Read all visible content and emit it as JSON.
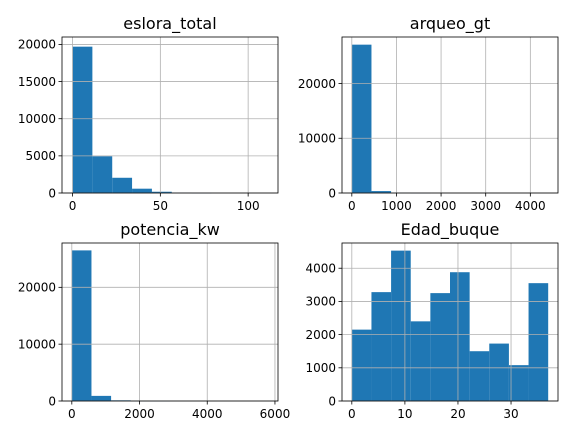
{
  "chart_data": [
    {
      "type": "bar",
      "subtype": "histogram",
      "title": "eslora_total",
      "xlim": [
        -6,
        117
      ],
      "ylim": [
        0,
        21000
      ],
      "xticks": [
        0,
        50,
        100
      ],
      "yticks": [
        0,
        5000,
        10000,
        15000,
        20000
      ],
      "grid": true,
      "bins": [
        {
          "x0": 0.0,
          "x1": 11.3,
          "count": 19700
        },
        {
          "x0": 11.3,
          "x1": 22.6,
          "count": 4950
        },
        {
          "x0": 22.6,
          "x1": 33.9,
          "count": 2050
        },
        {
          "x0": 33.9,
          "x1": 45.2,
          "count": 580
        },
        {
          "x0": 45.2,
          "x1": 56.5,
          "count": 170
        },
        {
          "x0": 56.5,
          "x1": 67.8,
          "count": 50
        },
        {
          "x0": 67.8,
          "x1": 79.1,
          "count": 15
        },
        {
          "x0": 79.1,
          "x1": 90.4,
          "count": 6
        },
        {
          "x0": 90.4,
          "x1": 101.7,
          "count": 3
        },
        {
          "x0": 101.7,
          "x1": 113.0,
          "count": 2
        }
      ]
    },
    {
      "type": "bar",
      "subtype": "histogram",
      "title": "arqueo_gt",
      "xlim": [
        -220,
        4620
      ],
      "ylim": [
        0,
        28500
      ],
      "xticks": [
        0,
        1000,
        2000,
        3000,
        4000
      ],
      "yticks": [
        0,
        10000,
        20000
      ],
      "grid": true,
      "bins": [
        {
          "x0": 0,
          "x1": 440,
          "count": 27100
        },
        {
          "x0": 440,
          "x1": 880,
          "count": 350
        },
        {
          "x0": 880,
          "x1": 1320,
          "count": 60
        },
        {
          "x0": 1320,
          "x1": 1760,
          "count": 20
        },
        {
          "x0": 1760,
          "x1": 2200,
          "count": 8
        },
        {
          "x0": 2200,
          "x1": 2640,
          "count": 4
        },
        {
          "x0": 2640,
          "x1": 3080,
          "count": 2
        },
        {
          "x0": 3080,
          "x1": 3520,
          "count": 1
        },
        {
          "x0": 3520,
          "x1": 3960,
          "count": 1
        },
        {
          "x0": 3960,
          "x1": 4400,
          "count": 1
        }
      ]
    },
    {
      "type": "bar",
      "subtype": "histogram",
      "title": "potencia_kw",
      "xlim": [
        -290,
        6090
      ],
      "ylim": [
        0,
        27800
      ],
      "xticks": [
        0,
        2000,
        4000,
        6000
      ],
      "yticks": [
        0,
        10000,
        20000
      ],
      "grid": true,
      "bins": [
        {
          "x0": 0,
          "x1": 580,
          "count": 26500
        },
        {
          "x0": 580,
          "x1": 1160,
          "count": 900
        },
        {
          "x0": 1160,
          "x1": 1740,
          "count": 120
        },
        {
          "x0": 1740,
          "x1": 2320,
          "count": 30
        },
        {
          "x0": 2320,
          "x1": 2900,
          "count": 10
        },
        {
          "x0": 2900,
          "x1": 3480,
          "count": 5
        },
        {
          "x0": 3480,
          "x1": 4060,
          "count": 3
        },
        {
          "x0": 4060,
          "x1": 4640,
          "count": 2
        },
        {
          "x0": 4640,
          "x1": 5220,
          "count": 1
        },
        {
          "x0": 5220,
          "x1": 5800,
          "count": 1
        }
      ]
    },
    {
      "type": "bar",
      "subtype": "histogram",
      "title": "Edad_buque",
      "xlim": [
        -1.85,
        38.85
      ],
      "ylim": [
        0,
        4760
      ],
      "xticks": [
        0,
        10,
        20,
        30
      ],
      "yticks": [
        0,
        1000,
        2000,
        3000,
        4000
      ],
      "grid": true,
      "bins": [
        {
          "x0": 0.0,
          "x1": 3.7,
          "count": 2150
        },
        {
          "x0": 3.7,
          "x1": 7.4,
          "count": 3280
        },
        {
          "x0": 7.4,
          "x1": 11.1,
          "count": 4530
        },
        {
          "x0": 11.1,
          "x1": 14.8,
          "count": 2400
        },
        {
          "x0": 14.8,
          "x1": 18.5,
          "count": 3250
        },
        {
          "x0": 18.5,
          "x1": 22.2,
          "count": 3880
        },
        {
          "x0": 22.2,
          "x1": 25.9,
          "count": 1500
        },
        {
          "x0": 25.9,
          "x1": 29.6,
          "count": 1730
        },
        {
          "x0": 29.6,
          "x1": 33.3,
          "count": 1080
        },
        {
          "x0": 33.3,
          "x1": 37.0,
          "count": 3550
        }
      ]
    }
  ],
  "style": {
    "bar_color": "#1f77b4",
    "grid_color": "#b0b0b0",
    "axis_color": "#000000"
  }
}
